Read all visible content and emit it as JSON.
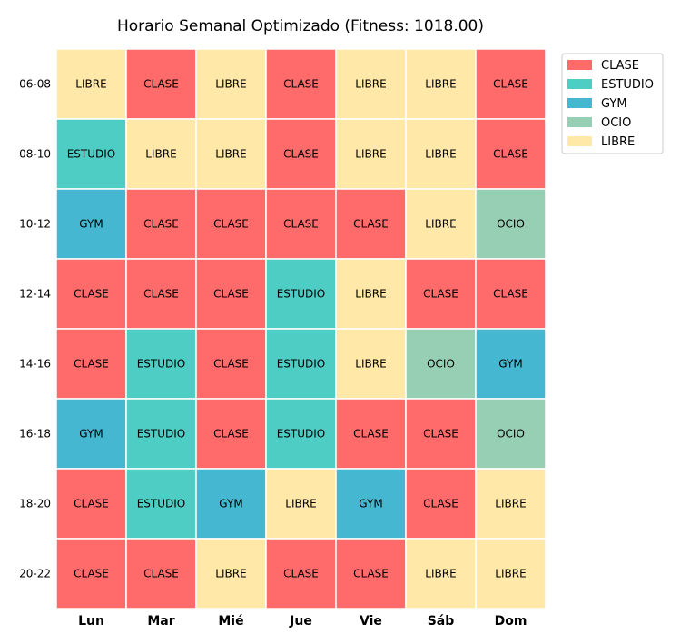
{
  "chart_data": {
    "type": "heatmap",
    "title": "Horario Semanal Optimizado (Fitness: 1018.00)",
    "days": [
      "Lun",
      "Mar",
      "Mié",
      "Jue",
      "Vie",
      "Sáb",
      "Dom"
    ],
    "slots": [
      "06-08",
      "08-10",
      "10-12",
      "12-14",
      "14-16",
      "16-18",
      "18-20",
      "20-22"
    ],
    "grid": [
      [
        "LIBRE",
        "CLASE",
        "LIBRE",
        "CLASE",
        "LIBRE",
        "LIBRE",
        "CLASE"
      ],
      [
        "ESTUDIO",
        "LIBRE",
        "LIBRE",
        "CLASE",
        "LIBRE",
        "LIBRE",
        "CLASE"
      ],
      [
        "GYM",
        "CLASE",
        "CLASE",
        "CLASE",
        "CLASE",
        "LIBRE",
        "OCIO"
      ],
      [
        "CLASE",
        "CLASE",
        "CLASE",
        "ESTUDIO",
        "LIBRE",
        "CLASE",
        "CLASE"
      ],
      [
        "CLASE",
        "ESTUDIO",
        "CLASE",
        "ESTUDIO",
        "LIBRE",
        "OCIO",
        "GYM"
      ],
      [
        "GYM",
        "ESTUDIO",
        "CLASE",
        "ESTUDIO",
        "CLASE",
        "CLASE",
        "OCIO"
      ],
      [
        "CLASE",
        "ESTUDIO",
        "GYM",
        "LIBRE",
        "GYM",
        "CLASE",
        "LIBRE"
      ],
      [
        "CLASE",
        "CLASE",
        "LIBRE",
        "CLASE",
        "CLASE",
        "LIBRE",
        "LIBRE"
      ]
    ],
    "legend": [
      {
        "label": "CLASE",
        "color": "#ff6b6b"
      },
      {
        "label": "ESTUDIO",
        "color": "#4ecdc4"
      },
      {
        "label": "GYM",
        "color": "#45b7d1"
      },
      {
        "label": "OCIO",
        "color": "#96cfb4"
      },
      {
        "label": "LIBRE",
        "color": "#ffe8a8"
      }
    ],
    "legend_position": "top-right",
    "grid_lines": false
  }
}
